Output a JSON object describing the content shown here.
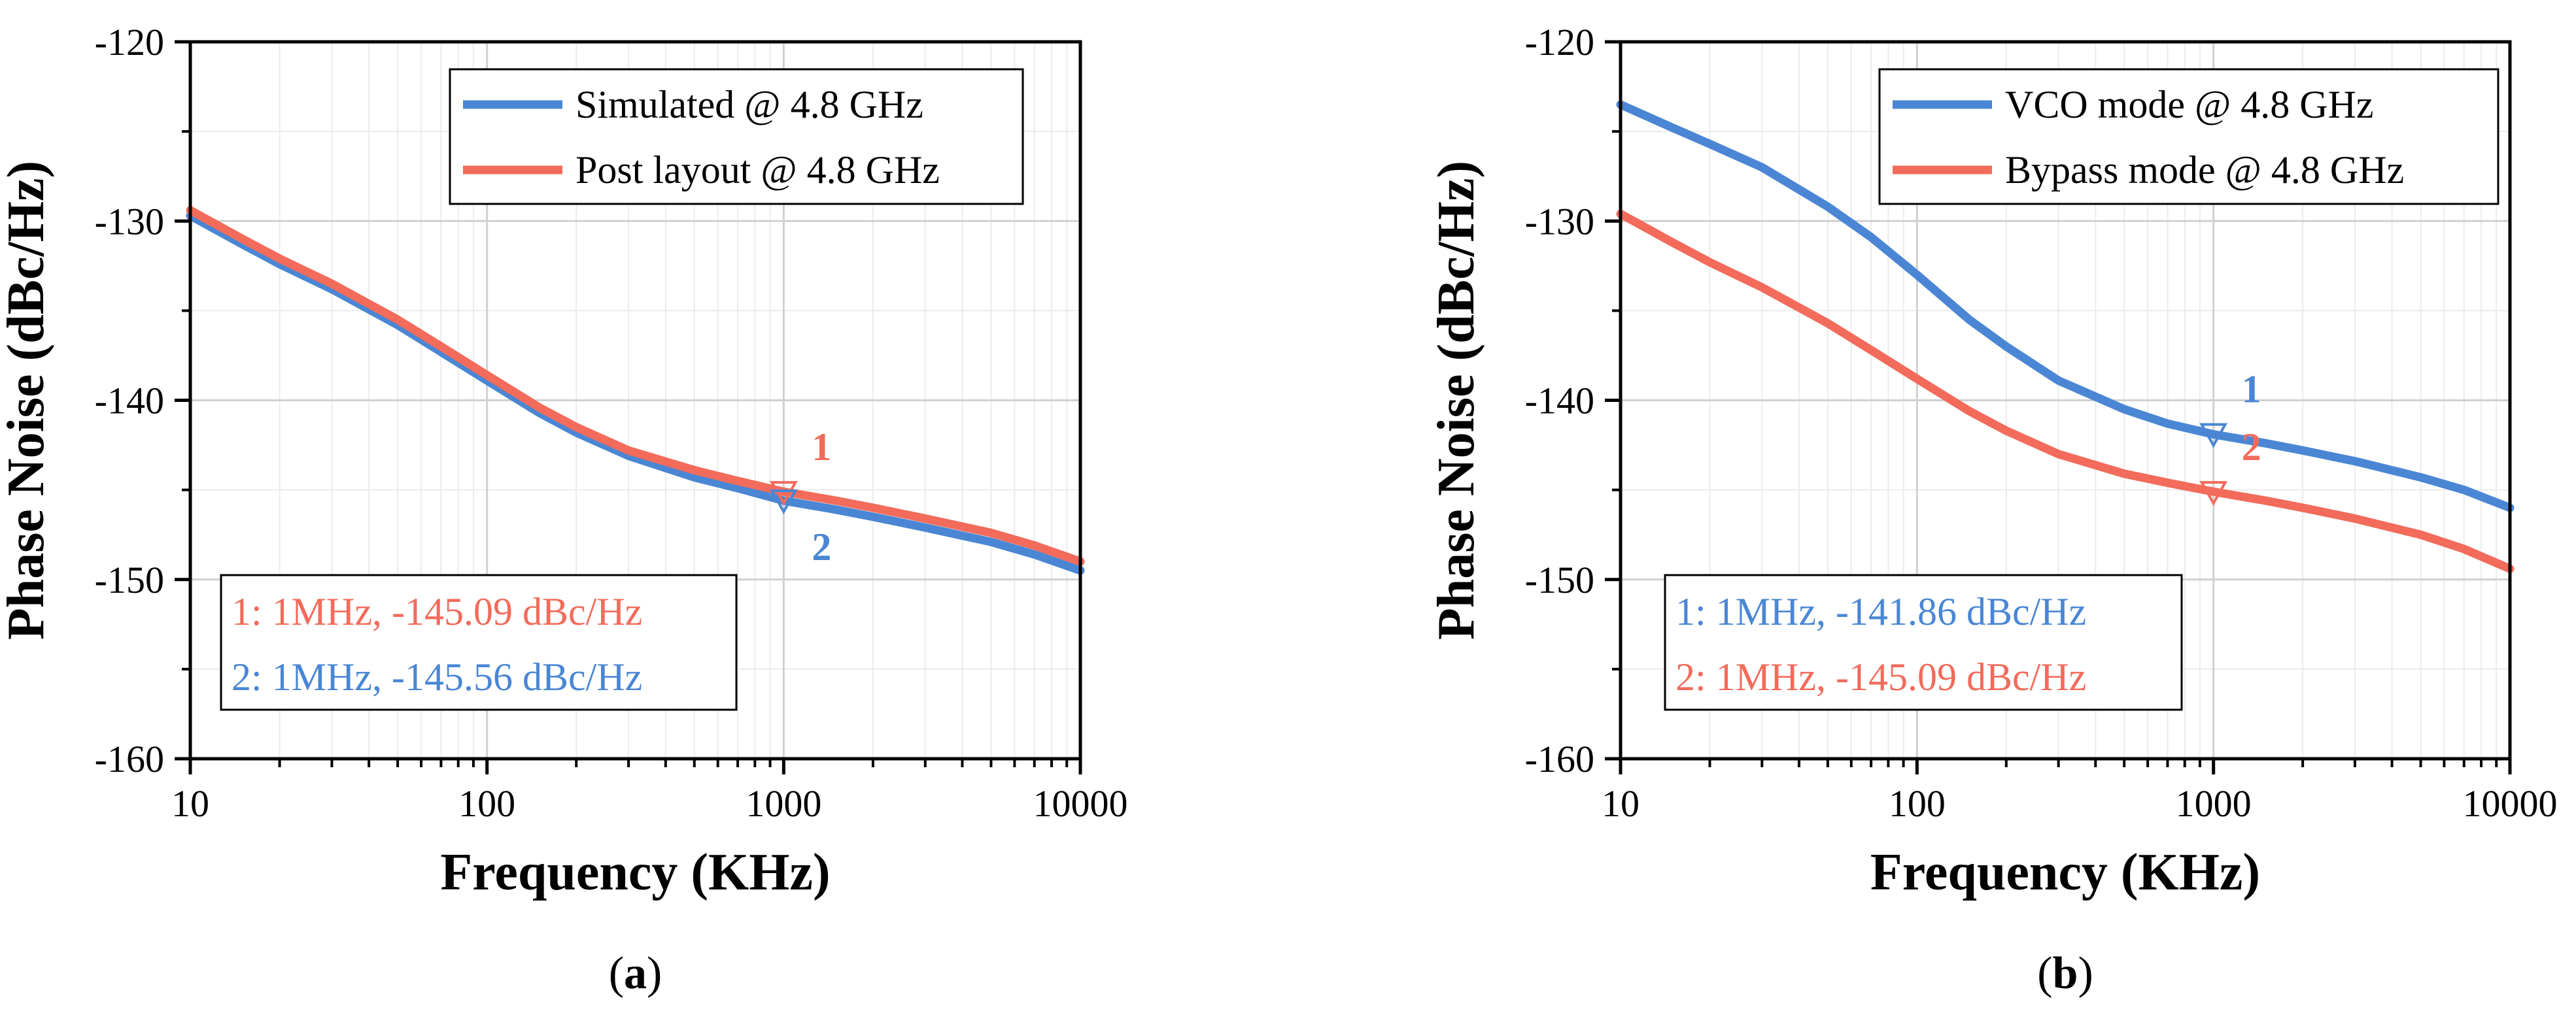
{
  "chart_data": [
    {
      "type": "line",
      "caption": "a",
      "xlabel": "Frequency (KHz)",
      "ylabel": "Phase Noise (dBc/Hz)",
      "xscale": "log",
      "xlim": [
        10,
        10000
      ],
      "ylim": [
        -160,
        -120
      ],
      "xticks": [
        10,
        100,
        1000,
        10000
      ],
      "yticks": [
        -120,
        -130,
        -140,
        -150,
        -160
      ],
      "grid": true,
      "legend_position": "top-right",
      "series": [
        {
          "name": "Simulated @ 4.8 GHz",
          "color": "#4a86d4",
          "x": [
            10,
            15,
            20,
            30,
            50,
            70,
            100,
            150,
            200,
            300,
            500,
            700,
            1000,
            1500,
            2000,
            3000,
            5000,
            7000,
            10000
          ],
          "y": [
            -129.7,
            -131.3,
            -132.4,
            -133.8,
            -135.8,
            -137.3,
            -138.9,
            -140.7,
            -141.8,
            -143.1,
            -144.3,
            -144.9,
            -145.6,
            -146.1,
            -146.5,
            -147.1,
            -147.9,
            -148.6,
            -149.5
          ]
        },
        {
          "name": "Post layout @ 4.8 GHz",
          "color": "#f26b5b",
          "x": [
            10,
            15,
            20,
            30,
            50,
            70,
            100,
            150,
            200,
            300,
            500,
            700,
            1000,
            1500,
            2000,
            3000,
            5000,
            7000,
            10000
          ],
          "y": [
            -129.4,
            -131.0,
            -132.1,
            -133.5,
            -135.5,
            -137.0,
            -138.6,
            -140.4,
            -141.5,
            -142.8,
            -143.9,
            -144.5,
            -145.1,
            -145.6,
            -146.0,
            -146.6,
            -147.4,
            -148.1,
            -149.0
          ]
        }
      ],
      "markers": [
        {
          "label": "1",
          "x": 1000,
          "y": -145.09,
          "color": "#f26b5b",
          "label_side": "above"
        },
        {
          "label": "2",
          "x": 1000,
          "y": -145.56,
          "color": "#4a86d4",
          "label_side": "below"
        }
      ],
      "annotations": [
        {
          "text": "1: 1MHz, -145.09 dBc/Hz",
          "color": "#f26b5b"
        },
        {
          "text": "2: 1MHz, -145.56 dBc/Hz",
          "color": "#4a86d4"
        }
      ]
    },
    {
      "type": "line",
      "caption": "b",
      "xlabel": "Frequency (KHz)",
      "ylabel": "Phase Noise (dBc/Hz)",
      "xscale": "log",
      "xlim": [
        10,
        10000
      ],
      "ylim": [
        -160,
        -120
      ],
      "xticks": [
        10,
        100,
        1000,
        10000
      ],
      "yticks": [
        -120,
        -130,
        -140,
        -150,
        -160
      ],
      "grid": true,
      "legend_position": "top-right",
      "series": [
        {
          "name": "VCO mode @ 4.8 GHz",
          "color": "#4a86d4",
          "x": [
            10,
            15,
            20,
            30,
            50,
            70,
            100,
            150,
            200,
            300,
            500,
            700,
            1000,
            1500,
            2000,
            3000,
            5000,
            7000,
            10000
          ],
          "y": [
            -123.5,
            -124.8,
            -125.7,
            -127.0,
            -129.2,
            -130.9,
            -133.0,
            -135.5,
            -137.0,
            -138.9,
            -140.5,
            -141.3,
            -141.9,
            -142.4,
            -142.8,
            -143.4,
            -144.3,
            -145.0,
            -146.0
          ]
        },
        {
          "name": "Bypass mode @ 4.8 GHz",
          "color": "#f26b5b",
          "x": [
            10,
            15,
            20,
            30,
            50,
            70,
            100,
            150,
            200,
            300,
            500,
            700,
            1000,
            1500,
            2000,
            3000,
            5000,
            7000,
            10000
          ],
          "y": [
            -129.6,
            -131.2,
            -132.3,
            -133.7,
            -135.7,
            -137.2,
            -138.8,
            -140.6,
            -141.7,
            -143.0,
            -144.1,
            -144.6,
            -145.1,
            -145.6,
            -146.0,
            -146.6,
            -147.5,
            -148.3,
            -149.4
          ]
        }
      ],
      "markers": [
        {
          "label": "1",
          "x": 1000,
          "y": -141.86,
          "color": "#4a86d4",
          "label_side": "above"
        },
        {
          "label": "2",
          "x": 1000,
          "y": -145.09,
          "color": "#f26b5b",
          "label_side": "above"
        }
      ],
      "annotations": [
        {
          "text": "1: 1MHz, -141.86 dBc/Hz",
          "color": "#4a86d4"
        },
        {
          "text": "2: 1MHz, -145.09 dBc/Hz",
          "color": "#f26b5b"
        }
      ]
    }
  ]
}
